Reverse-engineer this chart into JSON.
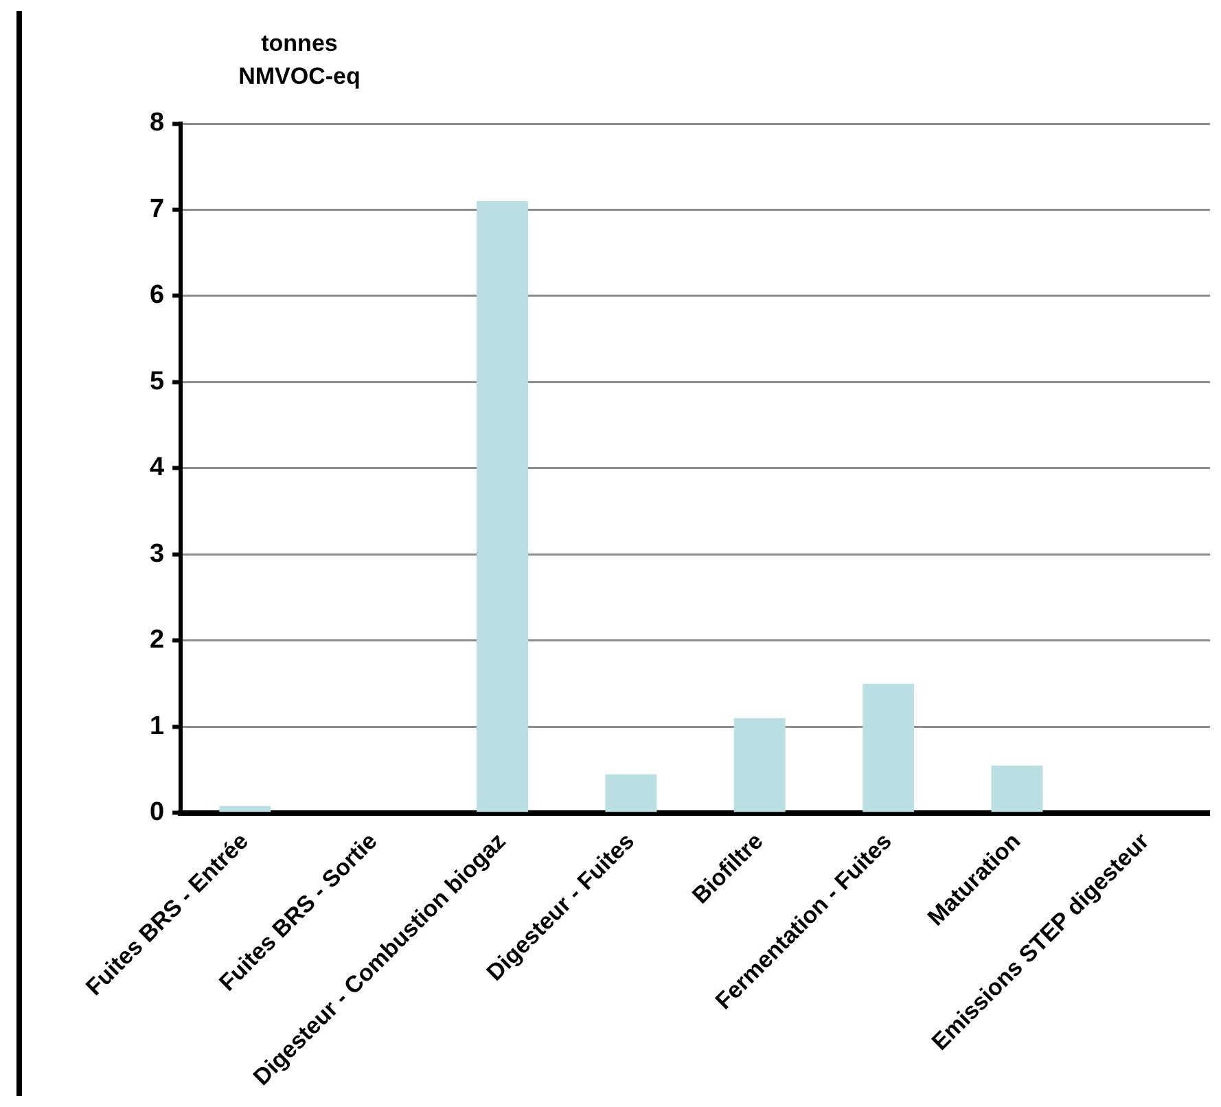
{
  "chart_data": {
    "type": "bar",
    "ylabel": "tonnes NMVOC-eq",
    "categories": [
      "Fuites BRS - Entrée",
      "Fuites BRS - Sortie",
      "Digesteur - Combustion biogaz",
      "Digesteur - Fuites",
      "Biofiltre",
      "Fermentation - Fuites",
      "Maturation",
      "Emissions STEP digesteur"
    ],
    "values": [
      0.08,
      0,
      7.1,
      0.45,
      1.1,
      1.5,
      0.55,
      0
    ],
    "color": "#b9dfe3",
    "ylim": [
      0,
      8
    ],
    "yticks": [
      0,
      1,
      2,
      3,
      4,
      5,
      6,
      7,
      8
    ],
    "grid": "y",
    "legend": false
  }
}
